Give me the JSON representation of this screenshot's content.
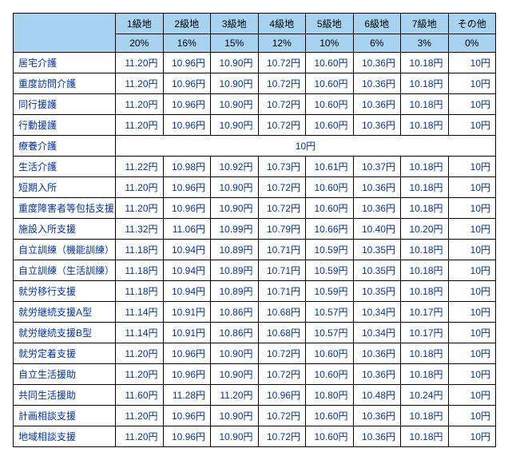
{
  "table": {
    "columns": [
      "1級地",
      "2級地",
      "3級地",
      "4級地",
      "5級地",
      "6級地",
      "7級地",
      "その他"
    ],
    "percentages": [
      "20%",
      "16%",
      "15%",
      "12%",
      "10%",
      "6%",
      "3%",
      "0%"
    ],
    "rows": [
      {
        "label": "居宅介護",
        "values": [
          "11.20円",
          "10.96円",
          "10.90円",
          "10.72円",
          "10.60円",
          "10.36円",
          "10.18円",
          "10円"
        ]
      },
      {
        "label": "重度訪問介護",
        "values": [
          "11.20円",
          "10.96円",
          "10.90円",
          "10.72円",
          "10.60円",
          "10.36円",
          "10.18円",
          "10円"
        ]
      },
      {
        "label": "同行援護",
        "values": [
          "11.20円",
          "10.96円",
          "10.90円",
          "10.72円",
          "10.60円",
          "10.36円",
          "10.18円",
          "10円"
        ]
      },
      {
        "label": "行動援護",
        "values": [
          "11.20円",
          "10.96円",
          "10.90円",
          "10.72円",
          "10.60円",
          "10.36円",
          "10.18円",
          "10円"
        ]
      },
      {
        "label": "療養介護",
        "merged": "10円"
      },
      {
        "label": "生活介護",
        "values": [
          "11.22円",
          "10.98円",
          "10.92円",
          "10.73円",
          "10.61円",
          "10.37円",
          "10.18円",
          "10円"
        ]
      },
      {
        "label": "短期入所",
        "values": [
          "11.20円",
          "10.96円",
          "10.90円",
          "10.72円",
          "10.60円",
          "10.36円",
          "10.18円",
          "10円"
        ]
      },
      {
        "label": "重度障害者等包括支援",
        "values": [
          "11.20円",
          "10.96円",
          "10.90円",
          "10.72円",
          "10.60円",
          "10.36円",
          "10.18円",
          "10円"
        ]
      },
      {
        "label": "施設入所支援",
        "values": [
          "11.32円",
          "11.06円",
          "10.99円",
          "10.79円",
          "10.66円",
          "10.40円",
          "10.20円",
          "10円"
        ]
      },
      {
        "label": "自立訓練（機能訓練）",
        "values": [
          "11.18円",
          "10.94円",
          "10.89円",
          "10.71円",
          "10.59円",
          "10.35円",
          "10.18円",
          "10円"
        ]
      },
      {
        "label": "自立訓練（生活訓練）",
        "values": [
          "11.18円",
          "10.94円",
          "10.89円",
          "10.71円",
          "10.59円",
          "10.35円",
          "10.18円",
          "10円"
        ]
      },
      {
        "label": "就労移行支援",
        "values": [
          "11.18円",
          "10.94円",
          "10.89円",
          "10.71円",
          "10.59円",
          "10.35円",
          "10.18円",
          "10円"
        ]
      },
      {
        "label": "就労継続支援A型",
        "values": [
          "11.14円",
          "10.91円",
          "10.86円",
          "10.68円",
          "10.57円",
          "10.34円",
          "10.17円",
          "10円"
        ]
      },
      {
        "label": "就労継続支援B型",
        "values": [
          "11.14円",
          "10.91円",
          "10.86円",
          "10.68円",
          "10.57円",
          "10.34円",
          "10.17円",
          "10円"
        ]
      },
      {
        "label": "就労定着支援",
        "values": [
          "11.20円",
          "10.96円",
          "10.90円",
          "10.72円",
          "10.60円",
          "10.36円",
          "10.18円",
          "10円"
        ]
      },
      {
        "label": "自立生活援助",
        "values": [
          "11.20円",
          "10.96円",
          "10.90円",
          "10.72円",
          "10.60円",
          "10.36円",
          "10.18円",
          "10円"
        ]
      },
      {
        "label": "共同生活援助",
        "values": [
          "11.60円",
          "11.28円",
          "11.20円",
          "10.96円",
          "10.80円",
          "10.48円",
          "10.24円",
          "10円"
        ]
      },
      {
        "label": "計画相談支援",
        "values": [
          "11.20円",
          "10.96円",
          "10.90円",
          "10.72円",
          "10.60円",
          "10.36円",
          "10.18円",
          "10円"
        ]
      },
      {
        "label": "地域相談支援",
        "values": [
          "11.20円",
          "10.96円",
          "10.90円",
          "10.72円",
          "10.60円",
          "10.36円",
          "10.18円",
          "10円"
        ]
      }
    ],
    "colors": {
      "header_bg": "#a7d3f0",
      "border": "#000000",
      "text": "#0033aa"
    }
  }
}
